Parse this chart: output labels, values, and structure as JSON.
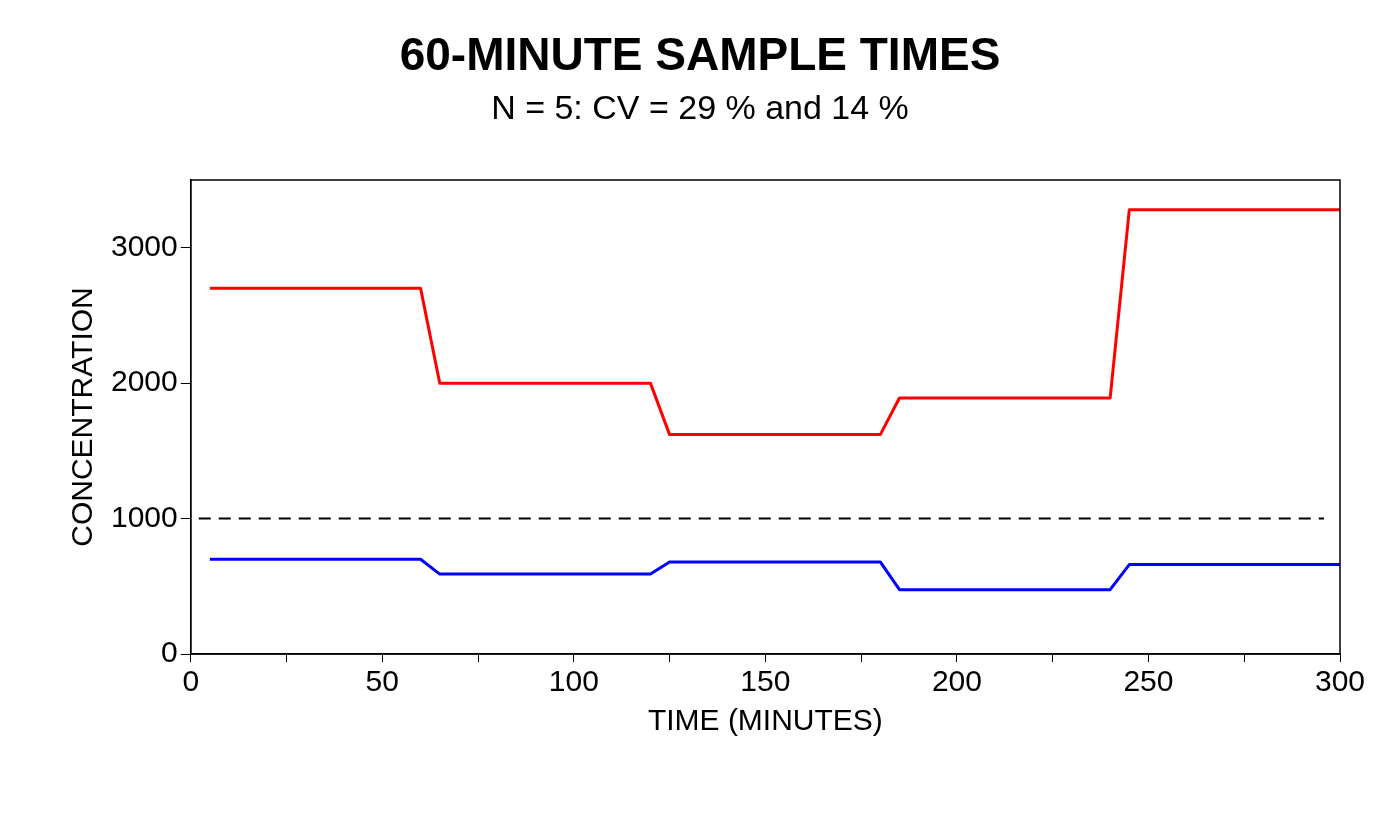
{
  "chart_data": {
    "type": "line",
    "title": "60-MINUTE SAMPLE TIMES",
    "subtitle": "N = 5: CV = 29 % and 14 %",
    "xlabel": "TIME (MINUTES)",
    "ylabel": "CONCENTRATION",
    "xlim": [
      0,
      300
    ],
    "xticks": [
      0,
      {
        "value": 25,
        "label": null
      },
      50,
      {
        "value": 75,
        "label": null
      },
      100,
      {
        "value": 125,
        "label": null
      },
      150,
      {
        "value": 175,
        "label": null
      },
      200,
      {
        "value": 225,
        "label": null
      },
      250,
      {
        "value": 275,
        "label": null
      },
      300
    ],
    "ylim": [
      0,
      3500
    ],
    "yticks": [
      0,
      1000,
      2000,
      3000
    ],
    "grid": false,
    "legend": false,
    "marker": "none",
    "line_style": "solid",
    "series": [
      {
        "color": "#ff0000",
        "x": [
          5,
          60,
          65,
          120,
          125,
          180,
          185,
          240,
          245,
          300
        ],
        "values": [
          2700,
          2700,
          2000,
          2000,
          1620,
          1620,
          1890,
          1890,
          3280,
          3280
        ]
      },
      {
        "color": "#0000ff",
        "x": [
          5,
          60,
          65,
          120,
          125,
          180,
          185,
          240,
          245,
          300
        ],
        "values": [
          700,
          700,
          590,
          590,
          680,
          680,
          475,
          475,
          660,
          660
        ]
      }
    ],
    "ref_lines": [
      {
        "axis": "y",
        "value": 1000,
        "color": "#000000",
        "line_style": "dashed"
      }
    ]
  }
}
